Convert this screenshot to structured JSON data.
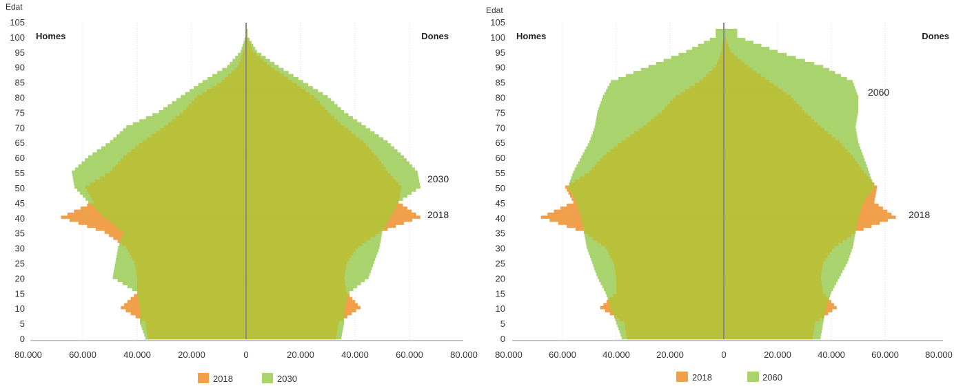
{
  "colors": {
    "base": "#f0a04b",
    "proj": "#a9d36d",
    "overlap": "#b9c13a",
    "axis": "#888888",
    "grid": "#d9d9d9"
  },
  "chart_data": [
    {
      "type": "population-pyramid",
      "ylabel": "Edat",
      "left_label": "Homes",
      "right_label": "Dones",
      "y_ticks": [
        "0",
        "5",
        "10",
        "15",
        "20",
        "25",
        "30",
        "35",
        "40",
        "45",
        "50",
        "55",
        "60",
        "65",
        "70",
        "75",
        "80",
        "85",
        "90",
        "95",
        "100",
        "105"
      ],
      "x_ticks": [
        "80.000",
        "60.000",
        "40.000",
        "20.000",
        "0",
        "20.000",
        "40.000",
        "60.000",
        "80.000"
      ],
      "xlim": [
        -80000,
        80000
      ],
      "ylim": [
        0,
        105
      ],
      "series": [
        {
          "name": "2018",
          "ages": [
            0,
            5,
            10,
            15,
            20,
            25,
            30,
            35,
            40,
            45,
            50,
            55,
            60,
            65,
            70,
            75,
            80,
            85,
            90,
            95,
            100
          ],
          "homes": [
            36000,
            37000,
            46000,
            40000,
            40000,
            41000,
            44000,
            52000,
            68000,
            56000,
            59000,
            50000,
            45000,
            38000,
            30000,
            23000,
            18000,
            9000,
            3000,
            800,
            100
          ],
          "dones": [
            33000,
            34000,
            42000,
            37000,
            36000,
            37000,
            41000,
            49000,
            64000,
            56000,
            57000,
            52000,
            48000,
            43000,
            36000,
            30000,
            25000,
            17000,
            9000,
            2500,
            300
          ]
        },
        {
          "name": "2030",
          "ages": [
            0,
            5,
            10,
            15,
            20,
            25,
            30,
            35,
            40,
            45,
            50,
            55,
            60,
            65,
            70,
            75,
            80,
            85,
            90,
            95,
            100
          ],
          "homes": [
            37000,
            39000,
            39000,
            40000,
            49000,
            48000,
            47000,
            45000,
            52000,
            58000,
            63000,
            64000,
            58000,
            50000,
            44000,
            32000,
            24000,
            16000,
            7000,
            2000,
            200
          ],
          "dones": [
            35000,
            36000,
            36000,
            38000,
            45000,
            47000,
            49000,
            50000,
            53000,
            56000,
            64000,
            63000,
            58000,
            52000,
            44000,
            36000,
            30000,
            21000,
            12000,
            4000,
            600
          ]
        }
      ],
      "annotations": [
        "2030",
        "2018"
      ]
    },
    {
      "type": "population-pyramid",
      "ylabel": "Edat",
      "left_label": "Homes",
      "right_label": "Dones",
      "y_ticks": [
        "0",
        "5",
        "10",
        "15",
        "20",
        "25",
        "30",
        "35",
        "40",
        "45",
        "50",
        "55",
        "60",
        "65",
        "70",
        "75",
        "80",
        "85",
        "90",
        "95",
        "100",
        "105"
      ],
      "x_ticks": [
        "80.000",
        "60.000",
        "40.000",
        "20.000",
        "0",
        "20.000",
        "40.000",
        "60.000",
        "80.000"
      ],
      "xlim": [
        -80000,
        80000
      ],
      "ylim": [
        0,
        105
      ],
      "series": [
        {
          "name": "2018",
          "ages": [
            0,
            5,
            10,
            15,
            20,
            25,
            30,
            35,
            40,
            45,
            50,
            55,
            60,
            65,
            70,
            75,
            80,
            85,
            90,
            95,
            100
          ],
          "homes": [
            36000,
            37000,
            46000,
            40000,
            40000,
            41000,
            44000,
            52000,
            68000,
            56000,
            59000,
            50000,
            45000,
            38000,
            30000,
            23000,
            18000,
            9000,
            3000,
            800,
            100
          ],
          "dones": [
            33000,
            34000,
            42000,
            37000,
            36000,
            37000,
            41000,
            49000,
            64000,
            56000,
            57000,
            52000,
            48000,
            43000,
            36000,
            30000,
            25000,
            17000,
            9000,
            2500,
            300
          ]
        },
        {
          "name": "2060",
          "ages": [
            0,
            5,
            10,
            15,
            20,
            25,
            30,
            35,
            40,
            45,
            50,
            55,
            60,
            65,
            70,
            75,
            80,
            85,
            90,
            95,
            100
          ],
          "homes": [
            38000,
            40000,
            42000,
            44000,
            47000,
            49000,
            51000,
            52000,
            53000,
            55000,
            58000,
            56000,
            53000,
            50000,
            48000,
            47000,
            45000,
            42000,
            28000,
            14000,
            3000
          ],
          "dones": [
            36000,
            37000,
            38000,
            40000,
            43000,
            46000,
            48000,
            49000,
            50000,
            52000,
            56000,
            54000,
            52000,
            50000,
            49000,
            50000,
            50000,
            48000,
            37000,
            20000,
            5000
          ]
        }
      ],
      "annotations": [
        "2060",
        "2018"
      ]
    }
  ]
}
